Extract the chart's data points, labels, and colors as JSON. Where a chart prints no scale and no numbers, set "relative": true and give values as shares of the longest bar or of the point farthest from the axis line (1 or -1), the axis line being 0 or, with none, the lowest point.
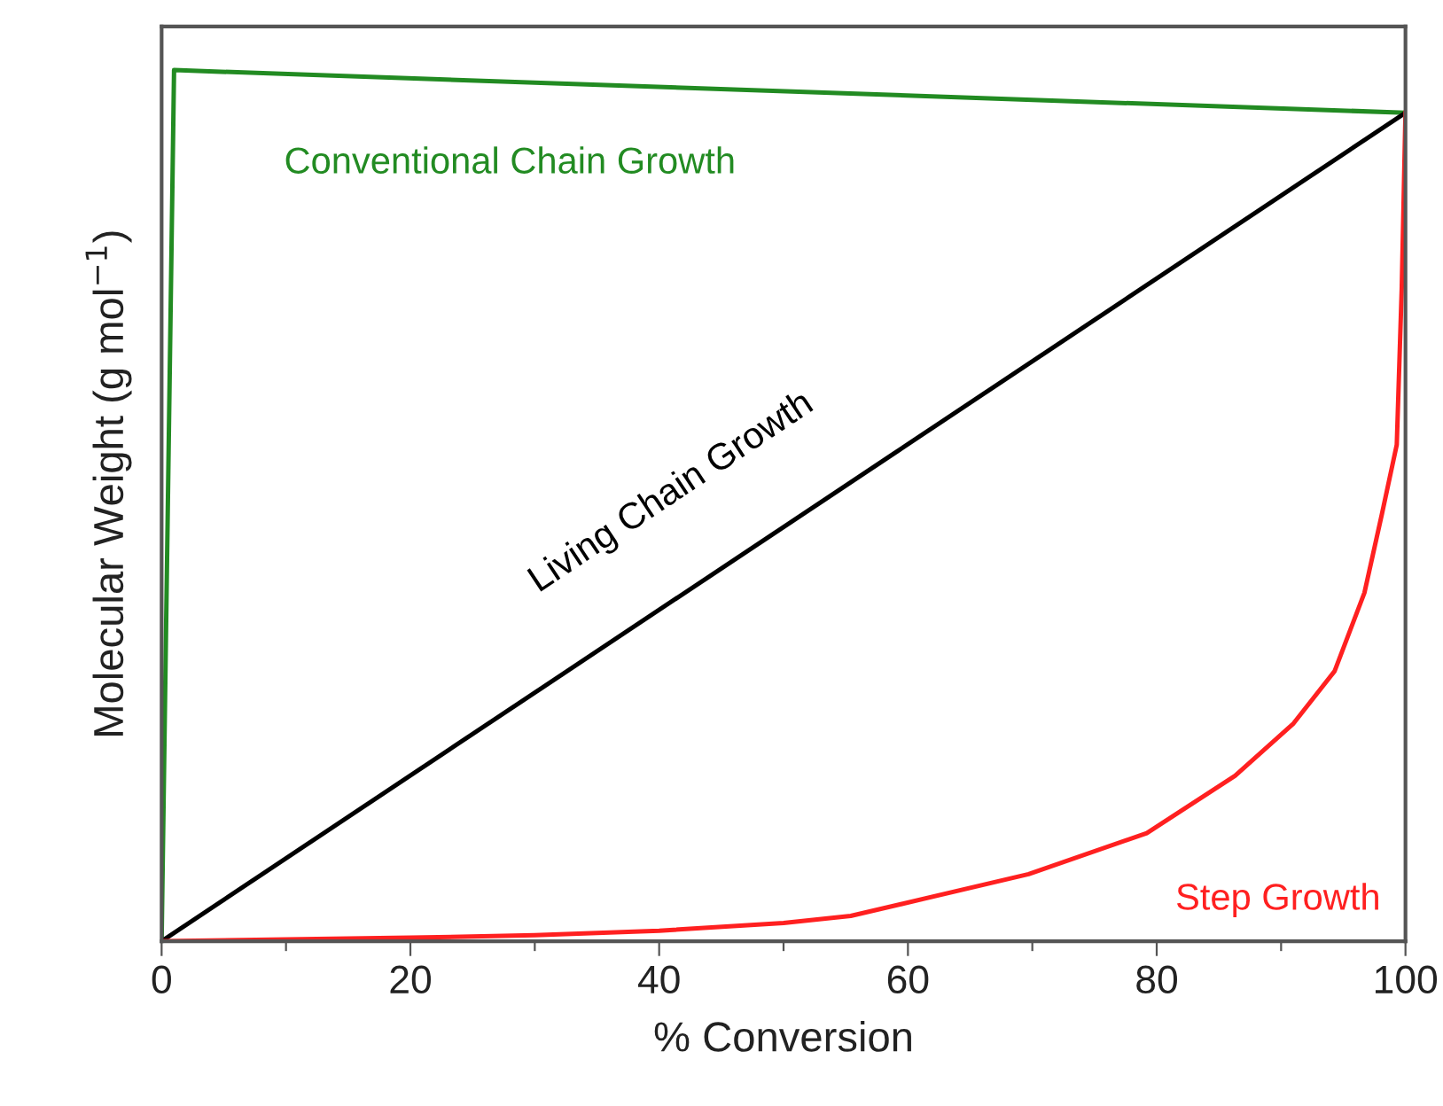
{
  "chart_data": {
    "type": "line",
    "relative": true,
    "xlabel": "% Conversion",
    "ylabel": "Molecular Weight (g mol$^{−1}$)",
    "xlim": [
      0,
      100
    ],
    "xticks": [
      0,
      {
        "value": 10,
        "label": null
      },
      20,
      {
        "value": 30,
        "label": null
      },
      40,
      {
        "value": 50,
        "label": null
      },
      60,
      {
        "value": 70,
        "label": null
      },
      80,
      {
        "value": 90,
        "label": null
      },
      100
    ],
    "tick_labels": "x",
    "grid": false,
    "legend": false,
    "marker": "none",
    "line_style": "solid",
    "series": [
      {
        "name": "Conventional Chain Growth",
        "color": "#228b22",
        "x": [
          0,
          1,
          100
        ],
        "values": [
          0,
          1,
          0.951
        ]
      },
      {
        "name": "Living Chain Growth",
        "color": "#000000",
        "x": [
          0,
          100
        ],
        "values": [
          0,
          0.951
        ]
      },
      {
        "name": "Step Growth",
        "color": "#ff2020",
        "x": [
          0,
          10,
          20,
          30,
          40,
          50,
          55.4,
          69.7,
          79.2,
          86.3,
          91,
          94.3,
          96.7,
          98.1,
          99.3,
          99.7,
          100
        ],
        "values": [
          0,
          0.002,
          0.004,
          0.007,
          0.012,
          0.021,
          0.029,
          0.077,
          0.124,
          0.19,
          0.25,
          0.31,
          0.4,
          0.49,
          0.57,
          0.75,
          0.951
        ]
      }
    ]
  }
}
